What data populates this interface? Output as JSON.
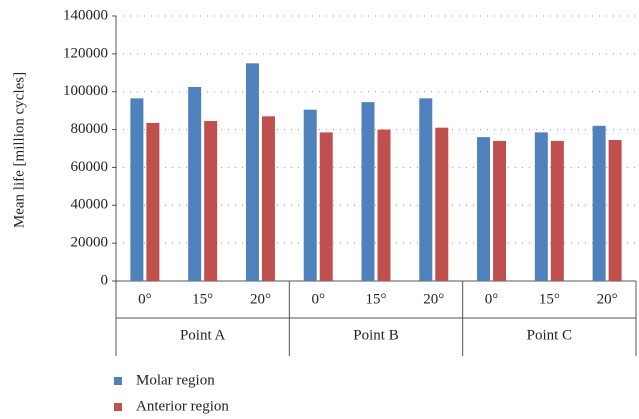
{
  "chart_data": {
    "type": "bar",
    "y_label": "Mean life [million cycles]",
    "categories": [
      "0°",
      "15°",
      "20°",
      "0°",
      "15°",
      "20°",
      "0°",
      "15°",
      "20°"
    ],
    "groups": [
      "Point A",
      "Point B",
      "Point C"
    ],
    "series": [
      {
        "name": "Molar region",
        "color": "#4f81bd",
        "values": [
          96500,
          102500,
          115000,
          90500,
          94500,
          96500,
          76000,
          78500,
          82000
        ]
      },
      {
        "name": "Anterior region",
        "color": "#c0504d",
        "values": [
          83500,
          84500,
          87000,
          78500,
          80000,
          81000,
          74000,
          74000,
          74500
        ]
      }
    ],
    "ylim": [
      0,
      140000
    ],
    "yticks": [
      0,
      20000,
      40000,
      60000,
      80000,
      100000,
      120000,
      140000
    ],
    "grid": true
  }
}
